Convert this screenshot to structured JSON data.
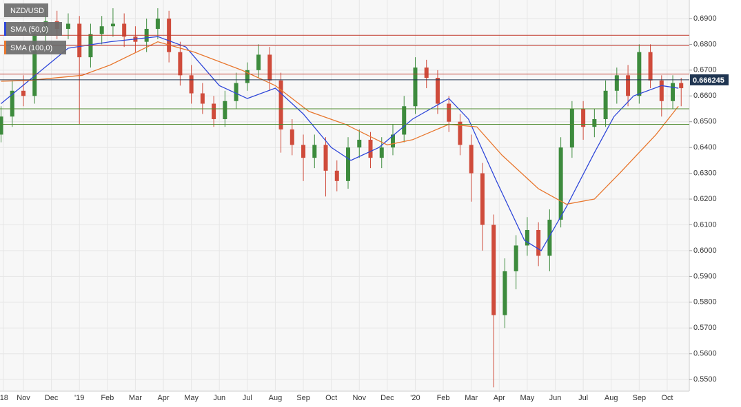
{
  "chart_data": {
    "type": "candlestick",
    "title": "NZD/USD",
    "up_color": "#3d8b3d",
    "down_color": "#cf4b3b",
    "x": [
      0.2,
      0.6,
      1.0,
      1.4,
      1.8,
      2.2,
      2.6,
      3.0,
      3.4,
      3.8,
      4.2,
      4.6,
      5.0,
      5.4,
      5.8,
      6.2,
      6.6,
      7.0,
      7.4,
      7.8,
      8.2,
      8.6,
      9.0,
      9.4,
      9.8,
      10.2,
      10.6,
      11.0,
      11.4,
      11.8,
      12.2,
      12.6,
      13.0,
      13.4,
      13.8,
      14.2,
      14.6,
      15.0,
      15.4,
      15.8,
      16.2,
      16.6,
      17.0,
      17.4,
      17.8,
      18.2,
      18.6,
      19.0,
      19.4,
      19.8,
      20.2,
      20.6,
      21.0,
      21.4,
      21.8,
      22.2,
      22.6,
      23.0,
      23.4,
      23.8,
      24.2,
      24.5
    ],
    "open": [
      0.645,
      0.652,
      0.662,
      0.66,
      0.684,
      0.689,
      0.686,
      0.688,
      0.675,
      0.684,
      0.687,
      0.688,
      0.683,
      0.681,
      0.686,
      0.69,
      0.677,
      0.668,
      0.661,
      0.657,
      0.651,
      0.658,
      0.665,
      0.67,
      0.676,
      0.666,
      0.647,
      0.641,
      0.636,
      0.641,
      0.631,
      0.627,
      0.64,
      0.643,
      0.636,
      0.64,
      0.645,
      0.656,
      0.671,
      0.667,
      0.657,
      0.65,
      0.641,
      0.63,
      0.61,
      0.575,
      0.592,
      0.602,
      0.608,
      0.598,
      0.612,
      0.64,
      0.655,
      0.648,
      0.651,
      0.662,
      0.668,
      0.66,
      0.677,
      0.666,
      0.658,
      0.665
    ],
    "high": [
      0.656,
      0.666,
      0.668,
      0.688,
      0.694,
      0.693,
      0.692,
      0.691,
      0.688,
      0.691,
      0.694,
      0.692,
      0.687,
      0.69,
      0.694,
      0.693,
      0.681,
      0.672,
      0.665,
      0.66,
      0.662,
      0.669,
      0.673,
      0.68,
      0.679,
      0.669,
      0.651,
      0.645,
      0.645,
      0.644,
      0.635,
      0.644,
      0.647,
      0.646,
      0.644,
      0.649,
      0.66,
      0.675,
      0.674,
      0.67,
      0.66,
      0.653,
      0.645,
      0.634,
      0.614,
      0.597,
      0.606,
      0.613,
      0.611,
      0.616,
      0.644,
      0.658,
      0.658,
      0.655,
      0.666,
      0.671,
      0.672,
      0.68,
      0.68,
      0.668,
      0.668,
      0.667
    ],
    "low": [
      0.642,
      0.648,
      0.656,
      0.657,
      0.68,
      0.682,
      0.682,
      0.649,
      0.671,
      0.68,
      0.683,
      0.679,
      0.677,
      0.677,
      0.682,
      0.673,
      0.664,
      0.657,
      0.653,
      0.648,
      0.648,
      0.655,
      0.662,
      0.667,
      0.662,
      0.638,
      0.637,
      0.627,
      0.632,
      0.621,
      0.623,
      0.624,
      0.636,
      0.632,
      0.632,
      0.637,
      0.642,
      0.653,
      0.663,
      0.653,
      0.646,
      0.637,
      0.619,
      0.6,
      0.547,
      0.57,
      0.585,
      0.598,
      0.594,
      0.592,
      0.609,
      0.636,
      0.643,
      0.644,
      0.648,
      0.657,
      0.656,
      0.657,
      0.663,
      0.652,
      0.655,
      0.656
    ],
    "close": [
      0.652,
      0.662,
      0.66,
      0.684,
      0.689,
      0.686,
      0.688,
      0.675,
      0.684,
      0.687,
      0.688,
      0.683,
      0.681,
      0.686,
      0.69,
      0.677,
      0.668,
      0.661,
      0.657,
      0.651,
      0.658,
      0.665,
      0.67,
      0.676,
      0.666,
      0.647,
      0.641,
      0.636,
      0.641,
      0.631,
      0.627,
      0.64,
      0.643,
      0.636,
      0.64,
      0.645,
      0.656,
      0.671,
      0.667,
      0.657,
      0.65,
      0.641,
      0.63,
      0.61,
      0.575,
      0.592,
      0.602,
      0.608,
      0.598,
      0.612,
      0.64,
      0.655,
      0.648,
      0.651,
      0.662,
      0.668,
      0.66,
      0.677,
      0.666,
      0.658,
      0.665,
      0.663
    ],
    "series": [
      {
        "name": "SMA (50,0)",
        "color": "#2f47d9",
        "x": [
          0.2,
          1.2,
          2.6,
          4.1,
          5.8,
          6.8,
          8.0,
          9.0,
          10.0,
          11.0,
          12.0,
          12.7,
          13.7,
          14.9,
          16.2,
          16.9,
          17.9,
          18.9,
          19.5,
          20.4,
          21.4,
          22.1,
          22.8,
          23.8,
          24.4
        ],
        "values": [
          0.657,
          0.666,
          0.6785,
          0.681,
          0.683,
          0.679,
          0.664,
          0.659,
          0.663,
          0.653,
          0.64,
          0.635,
          0.64,
          0.651,
          0.659,
          0.651,
          0.627,
          0.604,
          0.6,
          0.617,
          0.638,
          0.652,
          0.66,
          0.664,
          0.663
        ]
      },
      {
        "name": "SMA (100,0)",
        "color": "#e8772e",
        "x": [
          0.2,
          1.2,
          3.1,
          4.1,
          5.8,
          7.1,
          8.8,
          10.0,
          11.2,
          12.5,
          14.0,
          14.9,
          16.2,
          17.2,
          18.1,
          19.4,
          20.4,
          21.4,
          22.3,
          23.6,
          24.4
        ],
        "values": [
          0.6657,
          0.666,
          0.668,
          0.672,
          0.681,
          0.677,
          0.67,
          0.664,
          0.654,
          0.649,
          0.641,
          0.643,
          0.649,
          0.648,
          0.637,
          0.624,
          0.618,
          0.62,
          0.63,
          0.645,
          0.656
        ]
      }
    ],
    "hlines": [
      {
        "value": 0.6835,
        "color": "#c0392b"
      },
      {
        "value": 0.6795,
        "color": "#c0392b"
      },
      {
        "value": 0.6685,
        "color": "#c0392b"
      },
      {
        "value": 0.655,
        "color": "#4d8a2e"
      },
      {
        "value": 0.649,
        "color": "#4d8a2e"
      }
    ],
    "last_price": 0.666245,
    "last_color": "#1f3551",
    "ylim": [
      0.5455,
      0.6972
    ],
    "yticks": [
      {
        "value": 0.55,
        "label": "0.5500"
      },
      {
        "value": 0.56,
        "label": "0.5600"
      },
      {
        "value": 0.57,
        "label": "0.5700"
      },
      {
        "value": 0.58,
        "label": "0.5800"
      },
      {
        "value": 0.59,
        "label": "0.5900"
      },
      {
        "value": 0.6,
        "label": "0.6000"
      },
      {
        "value": 0.61,
        "label": "0.6100"
      },
      {
        "value": 0.62,
        "label": "0.6200"
      },
      {
        "value": 0.63,
        "label": "0.6300"
      },
      {
        "value": 0.64,
        "label": "0.6400"
      },
      {
        "value": 0.65,
        "label": "0.6500"
      },
      {
        "value": 0.66,
        "label": "0.6600"
      },
      {
        "value": 0.67,
        "label": "0.6700"
      },
      {
        "value": 0.68,
        "label": "0.6800"
      },
      {
        "value": 0.69,
        "label": "0.6900"
      }
    ],
    "xlim": [
      0.163,
      24.79
    ],
    "xticks": [
      {
        "value": 0.28,
        "label": "'18"
      },
      {
        "value": 1,
        "label": "Nov"
      },
      {
        "value": 2,
        "label": "Dec"
      },
      {
        "value": 3,
        "label": "'19"
      },
      {
        "value": 4,
        "label": "Feb"
      },
      {
        "value": 5,
        "label": "Mar"
      },
      {
        "value": 6,
        "label": "Apr"
      },
      {
        "value": 7,
        "label": "May"
      },
      {
        "value": 8,
        "label": "Jun"
      },
      {
        "value": 9,
        "label": "Jul"
      },
      {
        "value": 10,
        "label": "Aug"
      },
      {
        "value": 11,
        "label": "Sep"
      },
      {
        "value": 12,
        "label": "Oct"
      },
      {
        "value": 13,
        "label": "Nov"
      },
      {
        "value": 14,
        "label": "Dec"
      },
      {
        "value": 15,
        "label": "'20"
      },
      {
        "value": 16,
        "label": "Feb"
      },
      {
        "value": 17,
        "label": "Mar"
      },
      {
        "value": 18,
        "label": "Apr"
      },
      {
        "value": 19,
        "label": "May"
      },
      {
        "value": 20,
        "label": "Jun"
      },
      {
        "value": 21,
        "label": "Jul"
      },
      {
        "value": 22,
        "label": "Aug"
      },
      {
        "value": 23,
        "label": "Sep"
      },
      {
        "value": 24,
        "label": "Oct"
      }
    ],
    "grid": true
  }
}
